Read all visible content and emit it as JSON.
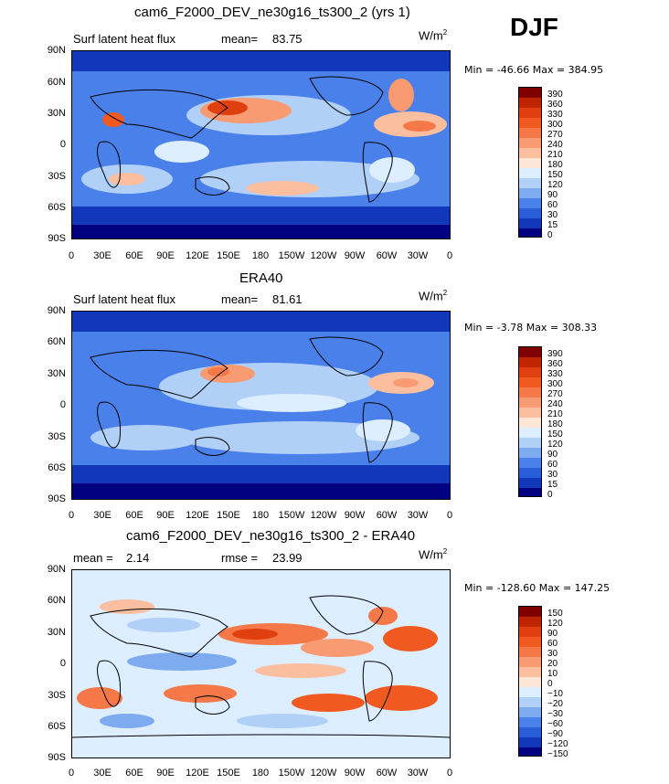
{
  "season": "DJF",
  "units": "W/m",
  "units_sup": "2",
  "chart_data": [
    {
      "type": "heatmap",
      "title": "cam6_F2000_DEV_ne30g16_ts300_2 (yrs 1)",
      "subtitle": "Surf latent heat flux",
      "stat_label": "mean=",
      "stat_value": "83.75",
      "min_label": "Min =",
      "min_value": "-46.66",
      "max_label": "Max =",
      "max_value": "384.95",
      "colorbar": [
        "390",
        "360",
        "330",
        "300",
        "270",
        "240",
        "210",
        "180",
        "150",
        "120",
        "90",
        "60",
        "30",
        "15",
        "0"
      ],
      "colors": [
        "#800000",
        "#c02400",
        "#e04010",
        "#f05a20",
        "#f47848",
        "#f89a72",
        "#fbbfa0",
        "#fde6d6",
        "#dceeff",
        "#b0d0f8",
        "#7eaaf0",
        "#4a80ea",
        "#2a5ed8",
        "#1038b8",
        "#000080"
      ],
      "yticks": [
        "90N",
        "60N",
        "30N",
        "0",
        "30S",
        "60S",
        "90S"
      ],
      "xticks": [
        "0",
        "30E",
        "60E",
        "90E",
        "120E",
        "150E",
        "180",
        "150W",
        "120W",
        "90W",
        "60W",
        "30W",
        "0"
      ]
    },
    {
      "type": "heatmap",
      "title": "ERA40",
      "subtitle": "Surf latent heat flux",
      "stat_label": "mean=",
      "stat_value": "81.61",
      "min_label": "Min =",
      "min_value": "-3.78",
      "max_label": "Max =",
      "max_value": "308.33",
      "colorbar": [
        "390",
        "360",
        "330",
        "300",
        "270",
        "240",
        "210",
        "180",
        "150",
        "120",
        "90",
        "60",
        "30",
        "15",
        "0"
      ],
      "colors": [
        "#800000",
        "#c02400",
        "#e04010",
        "#f05a20",
        "#f47848",
        "#f89a72",
        "#fbbfa0",
        "#fde6d6",
        "#dceeff",
        "#b0d0f8",
        "#7eaaf0",
        "#4a80ea",
        "#2a5ed8",
        "#1038b8",
        "#000080"
      ],
      "yticks": [
        "90N",
        "60N",
        "30N",
        "0",
        "30S",
        "60S",
        "90S"
      ],
      "xticks": [
        "0",
        "30E",
        "60E",
        "90E",
        "120E",
        "150E",
        "180",
        "150W",
        "120W",
        "90W",
        "60W",
        "30W",
        "0"
      ]
    },
    {
      "type": "heatmap",
      "title": "cam6_F2000_DEV_ne30g16_ts300_2 - ERA40",
      "subtitle": "mean =",
      "stat_label": "rmse =",
      "subtitle_value": "2.14",
      "stat_value": "23.99",
      "min_label": "Min =",
      "min_value": "-128.60",
      "max_label": "Max =",
      "max_value": "147.25",
      "colorbar": [
        "150",
        "120",
        "90",
        "60",
        "30",
        "20",
        "10",
        "0",
        "−10",
        "−20",
        "−30",
        "−60",
        "−90",
        "−120",
        "−150"
      ],
      "colors": [
        "#800000",
        "#c02400",
        "#e04010",
        "#f05a20",
        "#f47848",
        "#f89a72",
        "#fbbfa0",
        "#fde6d6",
        "#dceeff",
        "#b0d0f8",
        "#7eaaf0",
        "#4a80ea",
        "#2a5ed8",
        "#1038b8",
        "#000080"
      ],
      "yticks": [
        "90N",
        "60N",
        "30N",
        "0",
        "30S",
        "60S",
        "90S"
      ],
      "xticks": [
        "0",
        "30E",
        "60E",
        "90E",
        "120E",
        "150E",
        "180",
        "150W",
        "120W",
        "90W",
        "60W",
        "30W",
        "0"
      ]
    }
  ]
}
